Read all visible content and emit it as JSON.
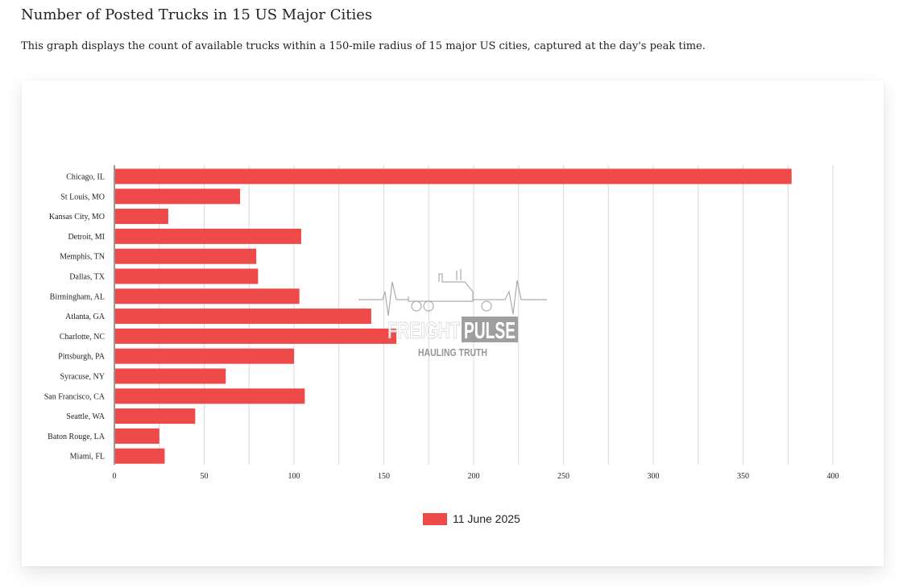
{
  "page": {
    "title": "Number of Posted Trucks in 15 US Major Cities",
    "description": "This graph displays the count of available trucks within a 150-mile radius of 15 major US cities, captured at the day's peak time."
  },
  "watermark": {
    "brand_part1": "FREIGHT",
    "brand_part2": "PULSE",
    "tagline": "HAULING TRUTH",
    "icon": "truck-heartbeat-icon"
  },
  "chart_data": {
    "type": "bar",
    "orientation": "horizontal",
    "title": "",
    "xlabel": "",
    "ylabel": "",
    "categories": [
      "Chicago, IL",
      "St Louis, MO",
      "Kansas City, MO",
      "Detroit, MI",
      "Memphis, TN",
      "Dallas, TX",
      "Birmingham, AL",
      "Atlanta, GA",
      "Charlotte, NC",
      "Pittsburgh, PA",
      "Syracuse, NY",
      "San Francisco, CA",
      "Seattle, WA",
      "Baton Rouge, LA",
      "Miami, FL"
    ],
    "series": [
      {
        "name": "11 June 2025",
        "color": "#ee4a4a",
        "values": [
          377,
          70,
          30,
          104,
          79,
          80,
          103,
          143,
          157,
          100,
          62,
          106,
          45,
          25,
          28
        ]
      }
    ],
    "xlim": [
      0,
      400
    ],
    "xticks": [
      0,
      50,
      100,
      150,
      200,
      250,
      300,
      350,
      400
    ],
    "grid": true,
    "legend_position": "bottom"
  }
}
